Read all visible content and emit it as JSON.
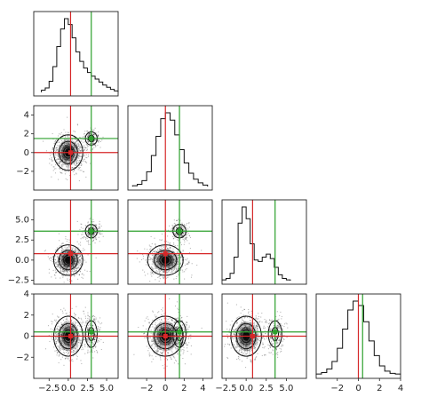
{
  "chart_data": {
    "type": "corner",
    "n_params": 4,
    "colors": {
      "truth_a": "#d62728",
      "truth_b": "#2ca02c",
      "hist_line": "#111111",
      "density": "#000000"
    },
    "truths_a": [
      0.3,
      0.0,
      0.8,
      0.0
    ],
    "truths_b": [
      3.0,
      1.5,
      3.6,
      0.4
    ],
    "param_ranges": [
      [
        -4.5,
        6.5
      ],
      [
        -4.0,
        5.0
      ],
      [
        -3.0,
        7.5
      ],
      [
        -4.0,
        4.0
      ]
    ],
    "histograms": [
      {
        "param": 0,
        "bin_start": -3.5,
        "bin_width": 0.5,
        "counts": [
          0.03,
          0.06,
          0.15,
          0.35,
          0.62,
          0.86,
          1.0,
          0.92,
          0.74,
          0.55,
          0.42,
          0.33,
          0.27,
          0.22,
          0.18,
          0.14,
          0.1,
          0.07,
          0.04,
          0.02
        ]
      },
      {
        "param": 1,
        "bin_start": -3.5,
        "bin_width": 0.5,
        "counts": [
          0.01,
          0.03,
          0.08,
          0.2,
          0.42,
          0.68,
          0.92,
          1.0,
          0.9,
          0.7,
          0.5,
          0.32,
          0.18,
          0.1,
          0.05,
          0.02
        ]
      },
      {
        "param": 2,
        "bin_start": -3.0,
        "bin_width": 0.5,
        "counts": [
          0.01,
          0.03,
          0.1,
          0.32,
          0.78,
          1.0,
          0.84,
          0.5,
          0.28,
          0.26,
          0.32,
          0.36,
          0.3,
          0.18,
          0.08,
          0.03,
          0.01
        ]
      },
      {
        "param": 3,
        "bin_start": -4.0,
        "bin_width": 0.5,
        "counts": [
          0.01,
          0.03,
          0.08,
          0.18,
          0.36,
          0.62,
          0.88,
          1.0,
          0.94,
          0.72,
          0.46,
          0.26,
          0.12,
          0.05,
          0.02,
          0.01
        ]
      }
    ],
    "axes": {
      "x": [
        {
          "ticks": [
            -2.5,
            0.0,
            2.5,
            5.0
          ],
          "labels": [
            "−2.5",
            "0.0",
            "2.5",
            "5.0"
          ]
        },
        {
          "ticks": [
            -2,
            0,
            2,
            4
          ],
          "labels": [
            "−2",
            "0",
            "2",
            "4"
          ]
        },
        {
          "ticks": [
            -2.5,
            0.0,
            2.5,
            5.0
          ],
          "labels": [
            "−2.5",
            "0.0",
            "2.5",
            "5.0"
          ]
        },
        {
          "ticks": [
            -2,
            0,
            2,
            4
          ],
          "labels": [
            "−2",
            "0",
            "2",
            "4"
          ]
        }
      ],
      "y": [
        null,
        {
          "ticks": [
            -2,
            0,
            2,
            4
          ],
          "labels": [
            "−2",
            "0",
            "2",
            "4"
          ]
        },
        {
          "ticks": [
            -2.5,
            0.0,
            2.5,
            5.0
          ],
          "labels": [
            "−2.5",
            "0.0",
            "2.5",
            "5.0"
          ]
        },
        {
          "ticks": [
            -2,
            0,
            2,
            4
          ],
          "labels": [
            "−2",
            "0",
            "2",
            "4"
          ]
        }
      ]
    },
    "clusters": {
      "main": {
        "center": [
          0.0,
          0.0,
          0.0,
          0.0
        ],
        "sigma": [
          1.0,
          1.0,
          1.0,
          1.0
        ]
      },
      "secondary": {
        "center": [
          3.0,
          1.5,
          3.6,
          0.2
        ],
        "sigma": [
          0.55,
          0.5,
          0.6,
          0.9
        ],
        "weight": 0.25
      }
    },
    "grid": false,
    "legend": "none"
  }
}
